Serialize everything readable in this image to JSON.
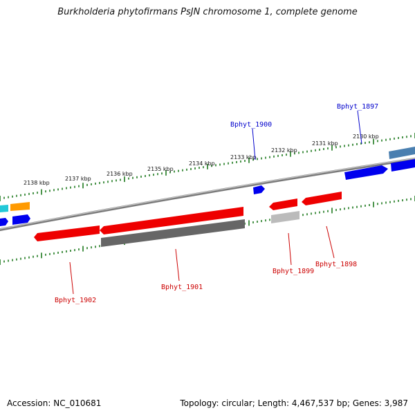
{
  "title": "Burkholderia phytofirmans PsJN chromosome 1, complete genome",
  "footer": {
    "accession": "Accession: NC_010681",
    "topology": "Topology: circular; Length: 4,467,537 bp; Genes: 3,987"
  },
  "ticks": [
    "2138 kbp",
    "2137 kbp",
    "2136 kbp",
    "2135 kbp",
    "2134 kbp",
    "2133 kbp",
    "2132 kbp",
    "2131 kbp",
    "2130 kbp"
  ],
  "gene_labels": {
    "top": [
      "Bphyt_1900",
      "Bphyt_1897"
    ],
    "bottom": [
      "Bphyt_1902",
      "Bphyt_1901",
      "Bphyt_1899",
      "Bphyt_1898"
    ]
  },
  "colors": {
    "backbone": "#8a8a8a",
    "ruler": "#1f7a1f",
    "forward_gene": "#0000ee",
    "reverse_gene": "#ee0000",
    "pseudo_gene": "#666666",
    "light_gene": "#bbbbbb",
    "orange_gene": "#ff9a00",
    "cyan_gene": "#22c8d8",
    "steel_gene": "#4a7fb0",
    "top_label": "#0000cc",
    "bottom_label": "#cc0000"
  }
}
